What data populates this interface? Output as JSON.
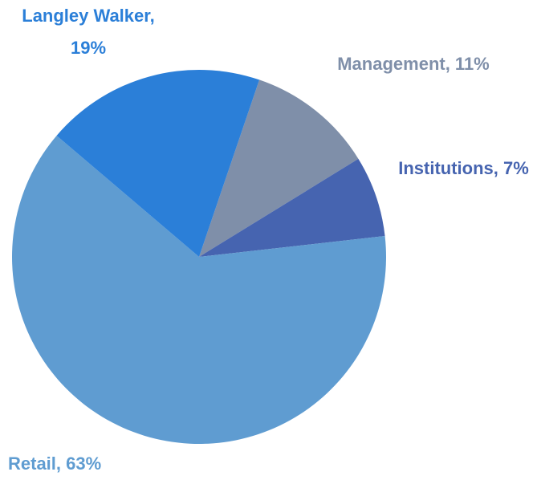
{
  "chart_data": {
    "type": "pie",
    "categories": [
      "Management",
      "Institutions",
      "Retail",
      "Langley Walker"
    ],
    "values": [
      11,
      7,
      63,
      19
    ],
    "value_labels": [
      "Management, 11%",
      "Institutions, 7%",
      "Retail, 63%",
      "Langley Walker, 19%"
    ],
    "colors": [
      "#7f8fa9",
      "#4664b0",
      "#5f9cd1",
      "#2b7fd8"
    ]
  }
}
